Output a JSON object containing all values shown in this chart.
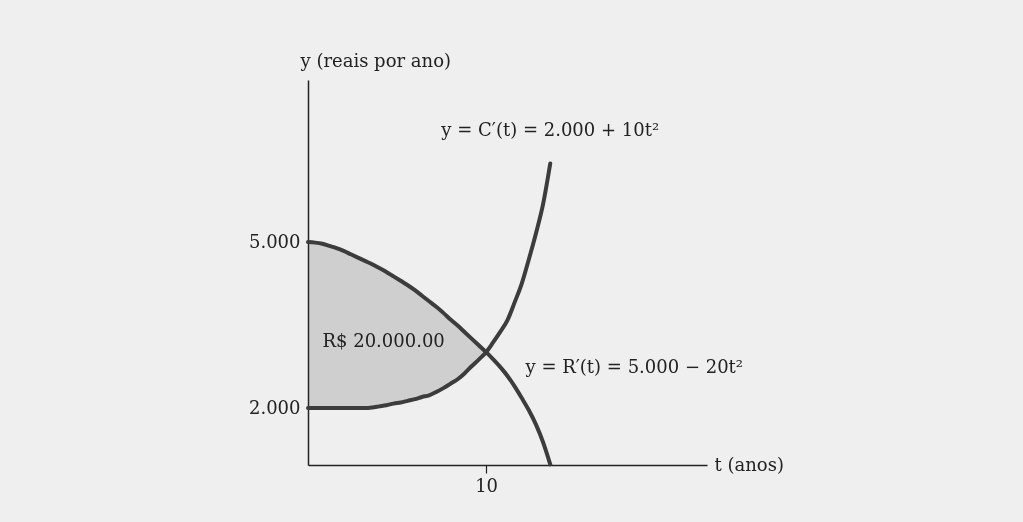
{
  "chart_data": {
    "type": "line",
    "xlabel": "t (anos)",
    "ylabel": "y (reais por ano)",
    "categories": [
      null,
      null,
      null,
      null,
      null,
      null,
      null,
      null,
      null,
      null,
      null,
      null,
      null,
      null,
      null,
      null,
      null,
      null,
      null,
      null,
      null,
      null,
      null,
      null,
      null,
      "10",
      null,
      null,
      null,
      null,
      null,
      null,
      null,
      null,
      null,
      null,
      null,
      null,
      null,
      null,
      null,
      null,
      null,
      null,
      null,
      null,
      null,
      null,
      null,
      null,
      null,
      null,
      null,
      null,
      null,
      null,
      null
    ],
    "ylim": [
      970,
      7930
    ],
    "yticks": [
      {
        "value": 2000,
        "label": "2.000"
      },
      {
        "value": 5000,
        "label": "5.000"
      }
    ],
    "series": [
      {
        "name": "y = C′(t) = 2.000 + 10t²",
        "color": "#3c3c3c",
        "values": [
          2000,
          2000,
          2000,
          2000,
          2000,
          2000,
          2000,
          2000,
          2000,
          2010,
          2030,
          2050,
          2080,
          2100,
          2130,
          2160,
          2200,
          2230,
          2290,
          2360,
          2440,
          2520,
          2630,
          2760,
          2880,
          3010,
          3190,
          3380,
          3590,
          3910,
          4250,
          4690,
          5160,
          5690,
          6420,
          null,
          null,
          null,
          null,
          null,
          null,
          null,
          null,
          null,
          null,
          null,
          null,
          null,
          null,
          null,
          null,
          null,
          null,
          null,
          null,
          null,
          null
        ]
      },
      {
        "name": "y = R′(t) = 5.000 − 20t²",
        "color": "#3c3c3c",
        "values": [
          5000,
          4990,
          4970,
          4930,
          4890,
          4840,
          4780,
          4720,
          4660,
          4600,
          4530,
          4460,
          4380,
          4300,
          4220,
          4130,
          4030,
          3930,
          3830,
          3720,
          3600,
          3490,
          3370,
          3250,
          3130,
          3010,
          2880,
          2740,
          2580,
          2390,
          2180,
          1960,
          1700,
          1380,
          980,
          null,
          null,
          null,
          null,
          null,
          null,
          null,
          null,
          null,
          null,
          null,
          null,
          null,
          null,
          null,
          null,
          null,
          null,
          null,
          null,
          null,
          null
        ],
        "lower": [
          2000,
          2000,
          2000,
          2000,
          2000,
          2000,
          2000,
          2000,
          2000,
          2010,
          2030,
          2050,
          2080,
          2100,
          2130,
          2160,
          2200,
          2230,
          2290,
          2360,
          2440,
          2520,
          2630,
          2760,
          2880,
          3010,
          null,
          null,
          null,
          null,
          null,
          null,
          null,
          null,
          null,
          null,
          null,
          null,
          null,
          null,
          null,
          null,
          null,
          null,
          null,
          null,
          null,
          null,
          null,
          null,
          null,
          null,
          null,
          null,
          null,
          null,
          null
        ],
        "upper": [
          5000,
          4990,
          4970,
          4930,
          4890,
          4840,
          4780,
          4720,
          4660,
          4600,
          4530,
          4460,
          4380,
          4300,
          4220,
          4130,
          4030,
          3930,
          3830,
          3720,
          3600,
          3490,
          3370,
          3250,
          3130,
          3010,
          null,
          null,
          null,
          null,
          null,
          null,
          null,
          null,
          null,
          null,
          null,
          null,
          null,
          null,
          null,
          null,
          null,
          null,
          null,
          null,
          null,
          null,
          null,
          null,
          null,
          null,
          null,
          null,
          null,
          null,
          null
        ]
      }
    ],
    "annotations": [
      "R$ 20.000.00"
    ]
  }
}
